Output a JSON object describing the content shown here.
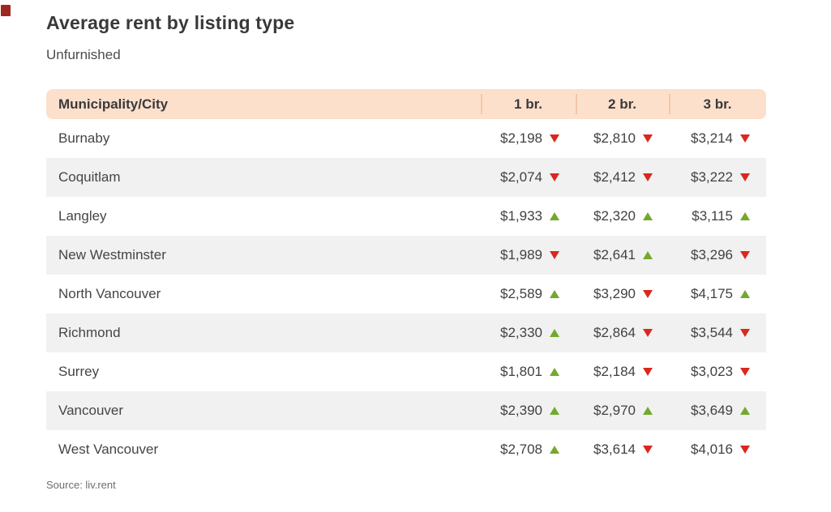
{
  "chart_data": {
    "type": "table",
    "title": "Average rent by listing type",
    "subtitle": "Unfurnished",
    "source": "Source: liv.rent",
    "columns": [
      "Municipality/City",
      "1 br.",
      "2 br.",
      "3 br."
    ],
    "rows": [
      {
        "city": "Burnaby",
        "values": [
          {
            "price": "$2,198",
            "amount": 2198,
            "change": "down"
          },
          {
            "price": "$2,810",
            "amount": 2810,
            "change": "down"
          },
          {
            "price": "$3,214",
            "amount": 3214,
            "change": "down"
          }
        ]
      },
      {
        "city": "Coquitlam",
        "values": [
          {
            "price": "$2,074",
            "amount": 2074,
            "change": "down"
          },
          {
            "price": "$2,412",
            "amount": 2412,
            "change": "down"
          },
          {
            "price": "$3,222",
            "amount": 3222,
            "change": "down"
          }
        ]
      },
      {
        "city": "Langley",
        "values": [
          {
            "price": "$1,933",
            "amount": 1933,
            "change": "up"
          },
          {
            "price": "$2,320",
            "amount": 2320,
            "change": "up"
          },
          {
            "price": "$3,115",
            "amount": 3115,
            "change": "up"
          }
        ]
      },
      {
        "city": "New Westminster",
        "values": [
          {
            "price": "$1,989",
            "amount": 1989,
            "change": "down"
          },
          {
            "price": "$2,641",
            "amount": 2641,
            "change": "up"
          },
          {
            "price": "$3,296",
            "amount": 3296,
            "change": "down"
          }
        ]
      },
      {
        "city": "North Vancouver",
        "values": [
          {
            "price": "$2,589",
            "amount": 2589,
            "change": "up"
          },
          {
            "price": "$3,290",
            "amount": 3290,
            "change": "down"
          },
          {
            "price": "$4,175",
            "amount": 4175,
            "change": "up"
          }
        ]
      },
      {
        "city": "Richmond",
        "values": [
          {
            "price": "$2,330",
            "amount": 2330,
            "change": "up"
          },
          {
            "price": "$2,864",
            "amount": 2864,
            "change": "down"
          },
          {
            "price": "$3,544",
            "amount": 3544,
            "change": "down"
          }
        ]
      },
      {
        "city": "Surrey",
        "values": [
          {
            "price": "$1,801",
            "amount": 1801,
            "change": "up"
          },
          {
            "price": "$2,184",
            "amount": 2184,
            "change": "down"
          },
          {
            "price": "$3,023",
            "amount": 3023,
            "change": "down"
          }
        ]
      },
      {
        "city": "Vancouver",
        "values": [
          {
            "price": "$2,390",
            "amount": 2390,
            "change": "up"
          },
          {
            "price": "$2,970",
            "amount": 2970,
            "change": "up"
          },
          {
            "price": "$3,649",
            "amount": 3649,
            "change": "up"
          }
        ]
      },
      {
        "city": "West Vancouver",
        "values": [
          {
            "price": "$2,708",
            "amount": 2708,
            "change": "up"
          },
          {
            "price": "$3,614",
            "amount": 3614,
            "change": "down"
          },
          {
            "price": "$4,016",
            "amount": 4016,
            "change": "down"
          }
        ]
      }
    ]
  },
  "colors": {
    "header_bg": "#fce0cc",
    "header_divider": "#f3c7a9",
    "zebra_row": "#f1f1f1",
    "trend_up": "#74a82c",
    "trend_down": "#d9281e",
    "corner_mark": "#9e2722"
  }
}
